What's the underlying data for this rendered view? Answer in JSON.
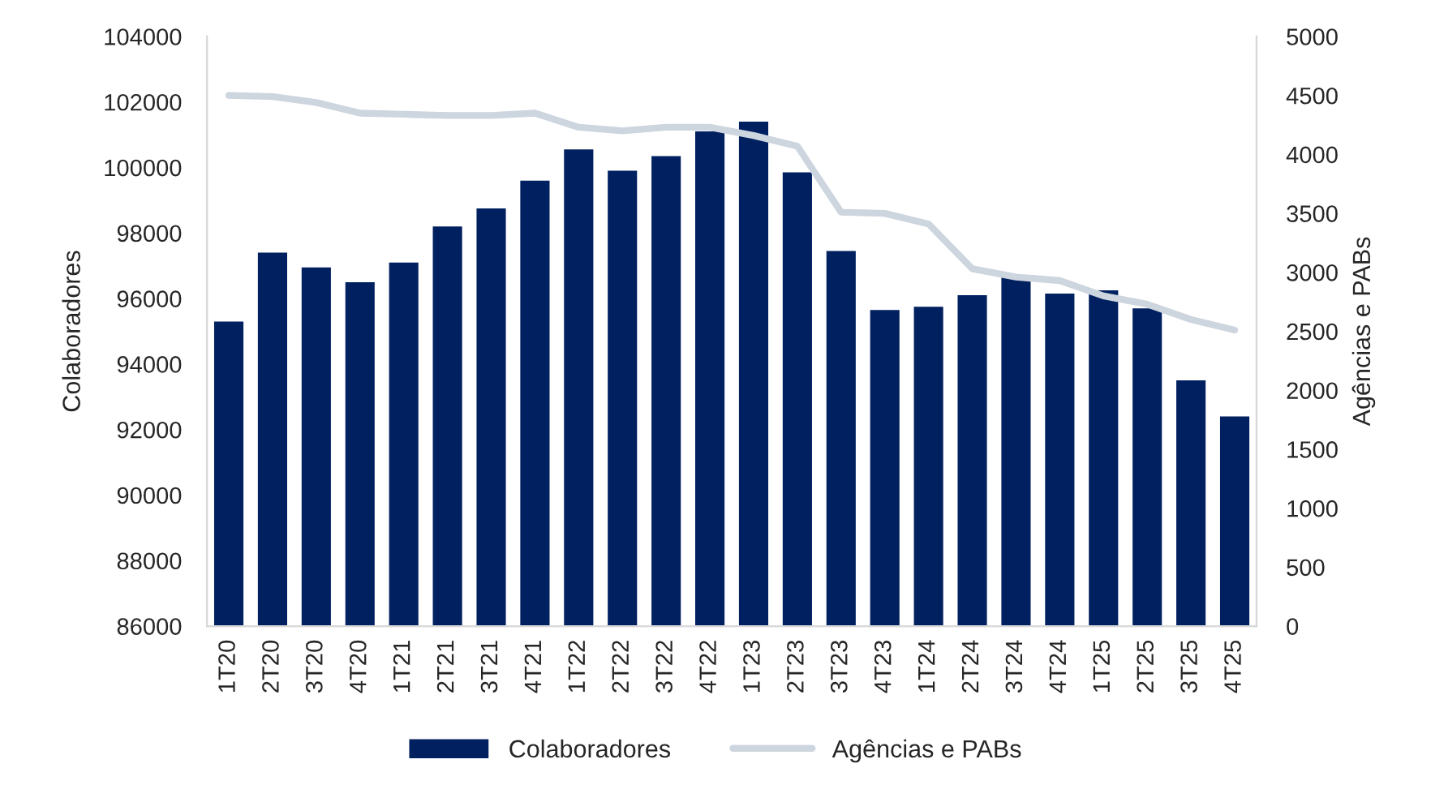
{
  "chart_data": {
    "type": "bar",
    "categories": [
      "1T20",
      "2T20",
      "3T20",
      "4T20",
      "1T21",
      "2T21",
      "3T21",
      "4T21",
      "1T22",
      "2T22",
      "3T22",
      "4T22",
      "1T23",
      "2T23",
      "3T23",
      "4T23",
      "1T24",
      "2T24",
      "3T24",
      "4T24",
      "1T25",
      "2T25",
      "3T25",
      "4T25"
    ],
    "series": [
      {
        "name": "Colaboradores",
        "color": "#002060",
        "values": [
          95300,
          97400,
          96950,
          96500,
          97100,
          98200,
          98750,
          99600,
          100550,
          99900,
          100350,
          101100,
          101400,
          99850,
          97450,
          95650,
          95750,
          96100,
          96700,
          96150,
          96250,
          95700,
          93500,
          92400
        ]
      },
      {
        "name": "Agências e PABs",
        "type": "line",
        "axis": "y2",
        "color": "#CDD5DF",
        "values": [
          4500,
          4490,
          4440,
          4350,
          4340,
          4330,
          4330,
          4350,
          4230,
          4200,
          4230,
          4230,
          4160,
          4070,
          3510,
          3500,
          3410,
          3030,
          2960,
          2930,
          2800,
          2730,
          2600,
          2510
        ]
      }
    ],
    "ylabel": "Colaboradores",
    "y2label": "Agências e PABs",
    "ylim": [
      86000,
      104000
    ],
    "yticks": [
      86000,
      88000,
      90000,
      92000,
      94000,
      96000,
      98000,
      100000,
      102000,
      104000
    ],
    "y2lim": [
      0,
      5000
    ],
    "y2ticks": [
      0,
      500,
      1000,
      1500,
      2000,
      2500,
      3000,
      3500,
      4000,
      4500,
      5000
    ],
    "legend": "bottom",
    "grid": false
  }
}
